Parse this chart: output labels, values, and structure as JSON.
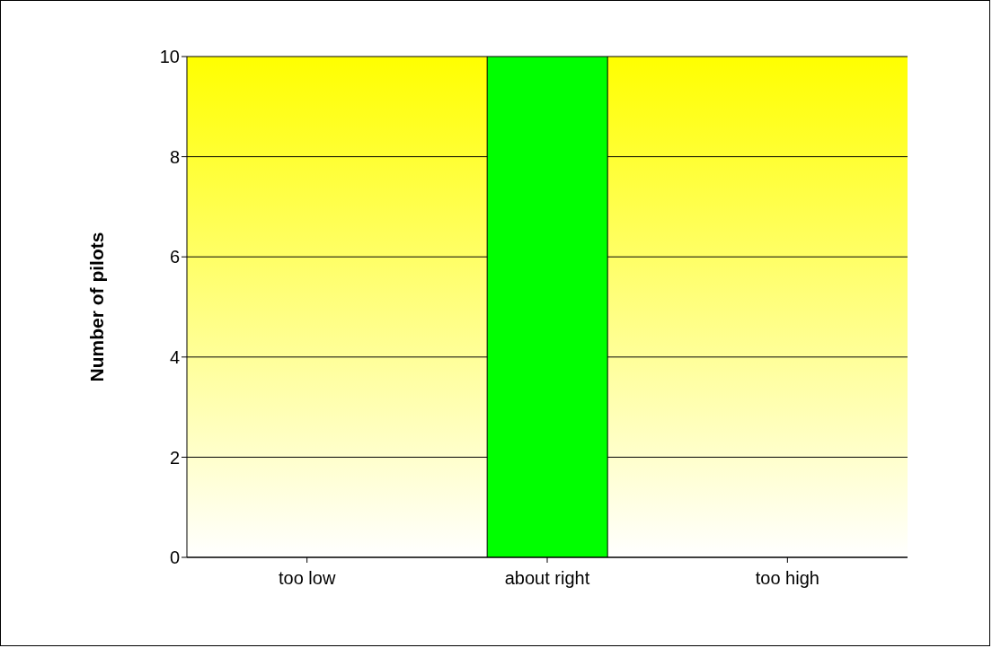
{
  "chart_data": {
    "type": "bar",
    "ylabel": "Number of pilots",
    "categories": [
      "too low",
      "about right",
      "too high"
    ],
    "values": [
      0,
      10,
      0
    ],
    "color": "#00ff00",
    "ylim": [
      0,
      10
    ],
    "yticks": [
      0,
      2,
      4,
      6,
      8,
      10
    ],
    "grid": "y"
  }
}
